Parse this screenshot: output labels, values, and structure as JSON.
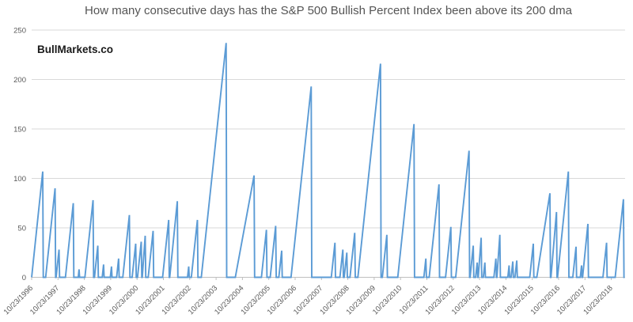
{
  "chart": {
    "title": "How many consecutive days has the S&P 500 Bullish Percent Index been above its 200 dma",
    "watermark": "BullMarkets.co"
  },
  "chart_data": {
    "type": "line",
    "title": "How many consecutive days has the S&P 500 Bullish Percent Index been above its 200 dma",
    "watermark": "BullMarkets.co",
    "xlabel": "",
    "ylabel": "",
    "ylim": [
      0,
      250
    ],
    "xlim_decimal_years": [
      1996.81,
      2019.33
    ],
    "grid": true,
    "legend": false,
    "line_color": "#5B9BD5",
    "axis_color": "#BFBFBF",
    "gridline_color": "#D9D9D9",
    "label_color": "#595959",
    "title_color": "#555555",
    "y_ticks": [
      0,
      50,
      100,
      150,
      200,
      250
    ],
    "x_tick_labels": [
      "10/23/1996",
      "10/23/1997",
      "10/23/1998",
      "10/23/1999",
      "10/23/2000",
      "10/23/2001",
      "10/23/2002",
      "10/23/2003",
      "10/23/2004",
      "10/23/2005",
      "10/23/2006",
      "10/23/2007",
      "10/23/2008",
      "10/23/2009",
      "10/23/2010",
      "10/23/2011",
      "10/23/2012",
      "10/23/2013",
      "10/23/2014",
      "10/23/2015",
      "10/23/2016",
      "10/23/2017",
      "10/23/2018"
    ],
    "series_note": "Sawtooth streak counter: rises ~1 unit per trading day (252/yr), resets instantly to 0. Spikes given as [peak_time_decimal_year, peak_value, optional_rise_start_year].",
    "spikes": [
      [
        1997.23,
        107
      ],
      [
        1997.7,
        90
      ],
      [
        1997.85,
        28
      ],
      [
        1998.39,
        75
      ],
      [
        1998.61,
        8
      ],
      [
        1999.14,
        78
      ],
      [
        1999.32,
        32
      ],
      [
        1999.54,
        13
      ],
      [
        1999.84,
        11
      ],
      [
        2000.11,
        19
      ],
      [
        2000.52,
        63
      ],
      [
        2000.76,
        34
      ],
      [
        2000.97,
        36
      ],
      [
        2001.12,
        42
      ],
      [
        2001.42,
        47
      ],
      [
        2002.01,
        58
      ],
      [
        2002.34,
        77
      ],
      [
        2002.77,
        11
      ],
      [
        2003.1,
        58
      ],
      [
        2004.19,
        237
      ],
      [
        2005.25,
        103,
        2004.54
      ],
      [
        2005.72,
        48
      ],
      [
        2006.07,
        52
      ],
      [
        2006.3,
        27
      ],
      [
        2007.42,
        193
      ],
      [
        2008.32,
        35
      ],
      [
        2008.62,
        28
      ],
      [
        2008.77,
        25
      ],
      [
        2009.07,
        45
      ],
      [
        2010.05,
        216
      ],
      [
        2010.29,
        43
      ],
      [
        2011.32,
        155
      ],
      [
        2011.77,
        19
      ],
      [
        2012.27,
        94
      ],
      [
        2012.72,
        51
      ],
      [
        2013.41,
        128
      ],
      [
        2013.57,
        32
      ],
      [
        2013.72,
        15
      ],
      [
        2013.87,
        40
      ],
      [
        2014.01,
        15
      ],
      [
        2014.43,
        19
      ],
      [
        2014.58,
        43
      ],
      [
        2014.93,
        12
      ],
      [
        2015.07,
        16
      ],
      [
        2015.22,
        17
      ],
      [
        2015.85,
        34
      ],
      [
        2016.48,
        85,
        2015.98
      ],
      [
        2016.73,
        66
      ],
      [
        2017.18,
        107
      ],
      [
        2017.47,
        31
      ],
      [
        2017.68,
        12
      ],
      [
        2017.92,
        54
      ],
      [
        2018.63,
        35
      ],
      [
        2019.27,
        79
      ]
    ]
  }
}
